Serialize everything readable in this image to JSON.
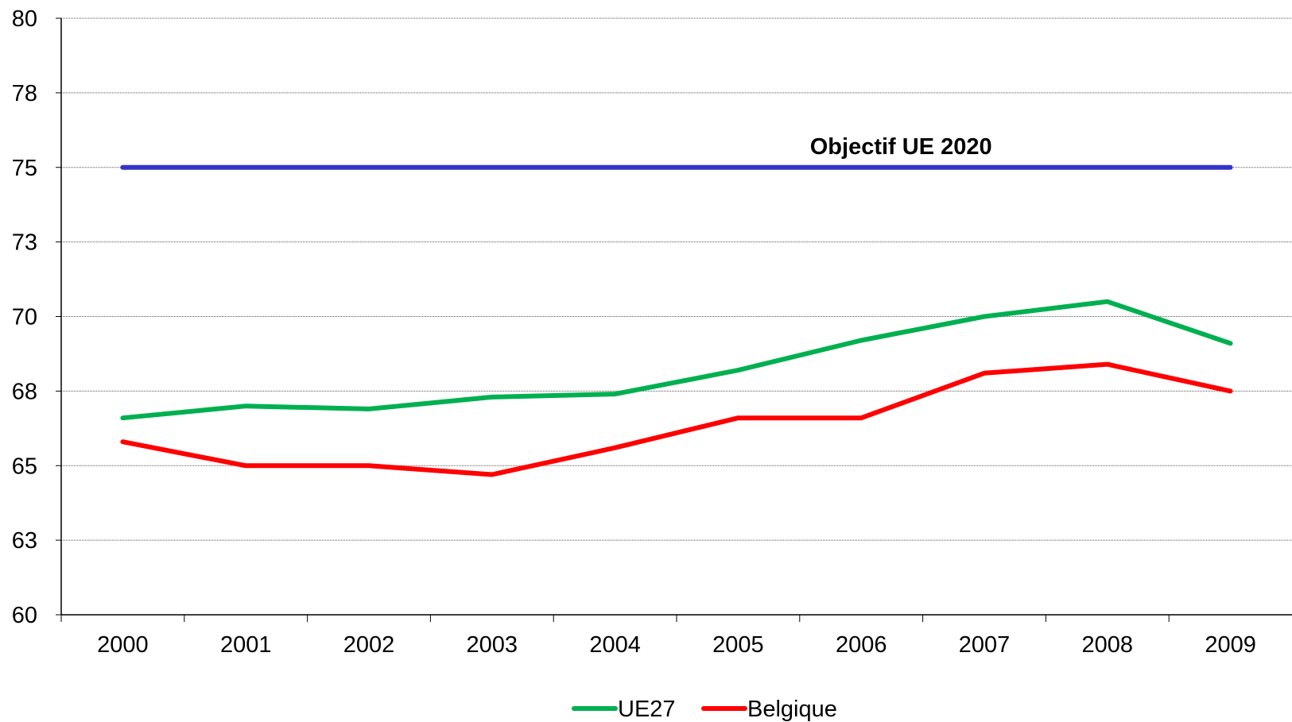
{
  "chart_data": {
    "type": "line",
    "title": "",
    "xlabel": "",
    "ylabel": "",
    "categories": [
      "2000",
      "2001",
      "2002",
      "2003",
      "2004",
      "2005",
      "2006",
      "2007",
      "2008",
      "2009"
    ],
    "y_tick_labels": [
      "60",
      "63",
      "65",
      "68",
      "70",
      "73",
      "75",
      "78",
      "80"
    ],
    "ylim": [
      60,
      80
    ],
    "grid": true,
    "legend_position": "bottom",
    "annotation": {
      "text": "Objectif UE 2020",
      "x": "2006",
      "y": 75
    },
    "series": [
      {
        "name": "UE27",
        "color": "#00b050",
        "in_legend": true,
        "values": [
          66.6,
          67.0,
          66.9,
          67.3,
          67.4,
          68.2,
          69.2,
          70.0,
          70.5,
          69.1
        ]
      },
      {
        "name": "Belgique",
        "color": "#ff0000",
        "in_legend": true,
        "values": [
          65.8,
          65.0,
          65.0,
          64.7,
          65.6,
          66.6,
          66.6,
          68.1,
          68.4,
          67.5
        ]
      },
      {
        "name": "",
        "color": "#3333cc",
        "in_legend": false,
        "values": [
          75,
          75,
          75,
          75,
          75,
          75,
          75,
          75,
          75,
          75
        ]
      }
    ]
  }
}
